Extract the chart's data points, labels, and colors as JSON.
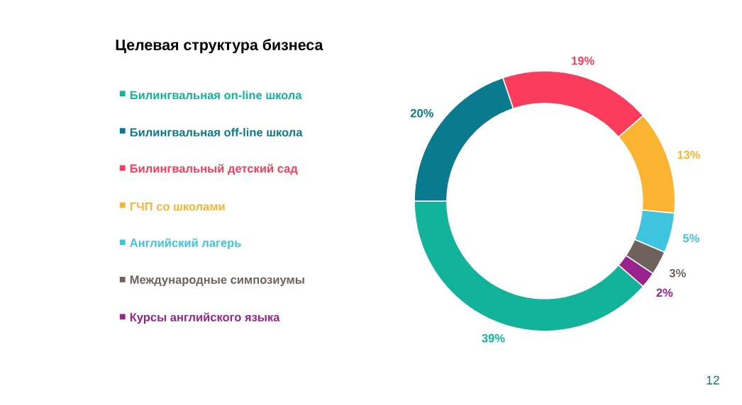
{
  "chart_data": {
    "type": "donut",
    "title": "Целевая структура бизнеса",
    "categories": [
      "Билингвальная on-line школа",
      "Билингвальная off-line школа",
      "Билингвальный детский сад",
      "ГЧП со школами",
      "Английский лагерь",
      "Международные симпозиумы",
      "Курсы английского языка"
    ],
    "values": [
      39,
      20,
      19,
      13,
      5,
      3,
      2
    ],
    "colors": [
      "#12b39a",
      "#0a7b8e",
      "#fc3c5d",
      "#fbb431",
      "#3ec4de",
      "#6f625d",
      "#98238f"
    ],
    "value_labels": [
      "39%",
      "20%",
      "19%",
      "13%",
      "5%",
      "3%",
      "2%"
    ],
    "legend": "left",
    "annotations": [
      "12"
    ]
  }
}
